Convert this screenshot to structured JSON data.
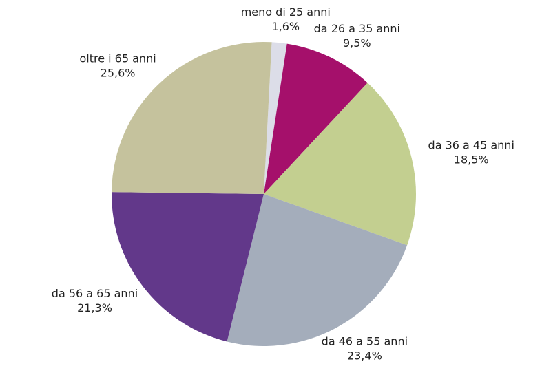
{
  "chart_data": {
    "type": "pie",
    "categories": [
      "meno di 25 anni",
      "da 26 a 35 anni",
      "da 36 a 45 anni",
      "da 46 a 55 anni",
      "da 56 a 65 anni",
      "oltre i 65 anni"
    ],
    "values": [
      1.6,
      9.5,
      18.5,
      23.4,
      21.3,
      25.6
    ],
    "value_labels": [
      "1,6%",
      "9,5%",
      "18,5%",
      "23,4%",
      "21,3%",
      "25,6%"
    ],
    "colors": [
      "#dcdde8",
      "#a5106b",
      "#c3cf90",
      "#a4adbb",
      "#62388a",
      "#c5c29d"
    ]
  }
}
